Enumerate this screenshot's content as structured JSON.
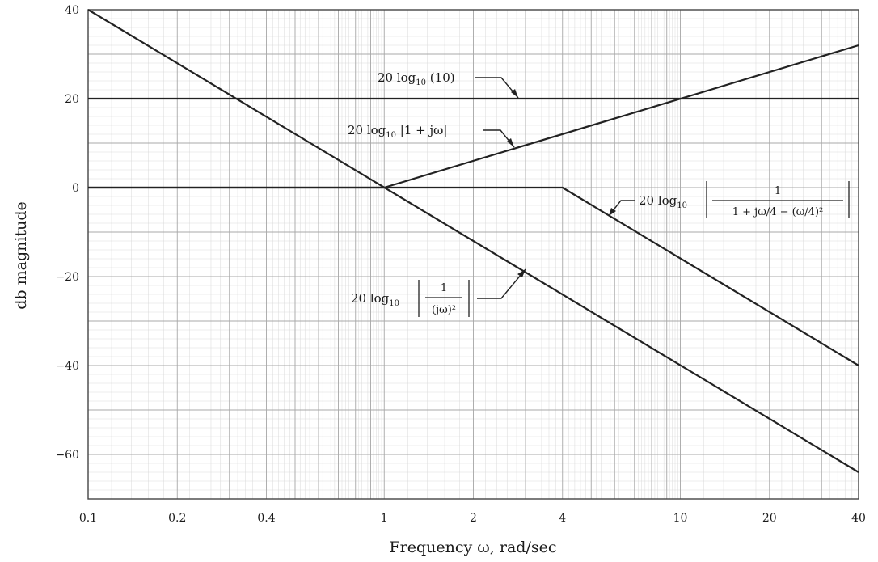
{
  "chart_data": {
    "type": "line",
    "xscale": "log",
    "xlim": [
      0.1,
      40
    ],
    "ylim": [
      -70,
      40
    ],
    "xlabel": "Frequency ω, rad/sec",
    "ylabel": "db magnitude",
    "x_ticks": [
      0.1,
      0.2,
      0.4,
      1,
      2,
      4,
      10,
      20,
      40
    ],
    "x_tick_labels": [
      "0.1",
      "0.2",
      "0.4",
      "1",
      "2",
      "4",
      "10",
      "20",
      "40"
    ],
    "y_ticks": [
      40,
      20,
      0,
      -20,
      -40,
      -60
    ],
    "y_tick_labels": [
      "40",
      "20",
      "0",
      "−20",
      "−40",
      "−60"
    ],
    "grid": true,
    "series": [
      {
        "x": [
          0.1,
          40
        ],
        "y": [
          20,
          20
        ]
      },
      {
        "x": [
          0.1,
          1,
          40
        ],
        "y": [
          0,
          0,
          32
        ]
      },
      {
        "x": [
          0.1,
          40
        ],
        "y": [
          40,
          -64
        ]
      },
      {
        "x": [
          0.1,
          4,
          40
        ],
        "y": [
          0,
          0,
          -40
        ]
      }
    ],
    "annotations": [
      {
        "series": 0,
        "prefix": "20 log",
        "sub": "10",
        "expr": " (10)"
      },
      {
        "series": 1,
        "prefix": "20 log",
        "sub": "10",
        "expr": " |1 + jω|"
      },
      {
        "series": 2,
        "prefix": "20 log",
        "sub": "10",
        "numerator": "1",
        "denominator": "(jω)²"
      },
      {
        "series": 3,
        "prefix": "20 log",
        "sub": "10",
        "numerator": "1",
        "denominator": "1 + jω/4 − (ω/4)²"
      }
    ]
  }
}
